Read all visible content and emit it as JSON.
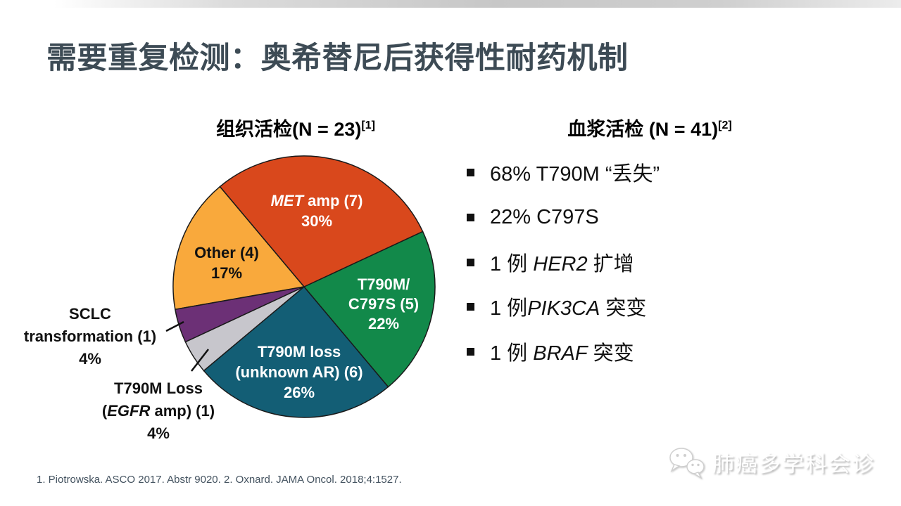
{
  "slide": {
    "title": "需要重复检测：奥希替尼后获得性耐药机制",
    "footnote": "1. Piotrowska. ASCO 2017. Abstr 9020. 2. Oxnard. JAMA Oncol. 2018;4:1527.",
    "watermark": "肺癌多学科会诊"
  },
  "left_panel": {
    "title_main": "组织活检(N = 23)",
    "title_sup": "[1]"
  },
  "right_panel": {
    "title_main": "血浆活检 (N = 41)",
    "title_sup": "[2]",
    "bullets": [
      {
        "pre": "68% T790M “丢失”",
        "em": "",
        "post": ""
      },
      {
        "pre": "22% C797S",
        "em": "",
        "post": ""
      },
      {
        "pre": "1 例 ",
        "em": "HER2",
        "post": " 扩增"
      },
      {
        "pre": "1 例",
        "em": "PIK3CA",
        "post": " 突变"
      },
      {
        "pre": "1 例 ",
        "em": "BRAF",
        "post": " 突变"
      }
    ]
  },
  "chart_data": {
    "type": "pie",
    "title": "组织活检(N = 23)[1]",
    "total_n": 23,
    "start_angle_deg": -40,
    "direction": "clockwise",
    "slices": [
      {
        "id": "met-amp",
        "label": "MET amp",
        "count": 7,
        "pct": 30,
        "color": "#d9481c",
        "label_color": "#ffffff"
      },
      {
        "id": "t790m-c797s",
        "label": "T790M/C797S",
        "count": 5,
        "pct": 22,
        "color": "#12894a",
        "label_color": "#ffffff"
      },
      {
        "id": "t790m-loss-unknown-ar",
        "label": "T790M loss (unknown AR)",
        "count": 6,
        "pct": 26,
        "color": "#135e75",
        "label_color": "#ffffff"
      },
      {
        "id": "t790m-loss-egfr-amp",
        "label": "T790M Loss (EGFR amp)",
        "count": 1,
        "pct": 4,
        "color": "#c7c6cc",
        "label_color": "#111111"
      },
      {
        "id": "sclc-transformation",
        "label": "SCLC transformation",
        "count": 1,
        "pct": 4,
        "color": "#6c3076",
        "label_color": "#111111"
      },
      {
        "id": "other",
        "label": "Other",
        "count": 4,
        "pct": 17,
        "color": "#f9a93c",
        "label_color": "#111111"
      }
    ]
  },
  "pie_labels": {
    "met": {
      "em": "MET",
      "rest": " amp (7)",
      "pct": "30%"
    },
    "green": {
      "line1": "T790M/",
      "line2": "C797S (5)",
      "pct": "22%"
    },
    "teal": {
      "line1": "T790M loss",
      "line2": "(unknown AR) (6)",
      "pct": "26%"
    },
    "other": {
      "line1": "Other (4)",
      "pct": "17%"
    },
    "sclc": {
      "line1": "SCLC",
      "line2": "transformation (1)",
      "pct": "4%"
    },
    "egfr": {
      "line1": "T790M Loss",
      "pre2": "(",
      "em2": "EGFR",
      "post2": " amp) (1)",
      "pct": "4%"
    }
  }
}
